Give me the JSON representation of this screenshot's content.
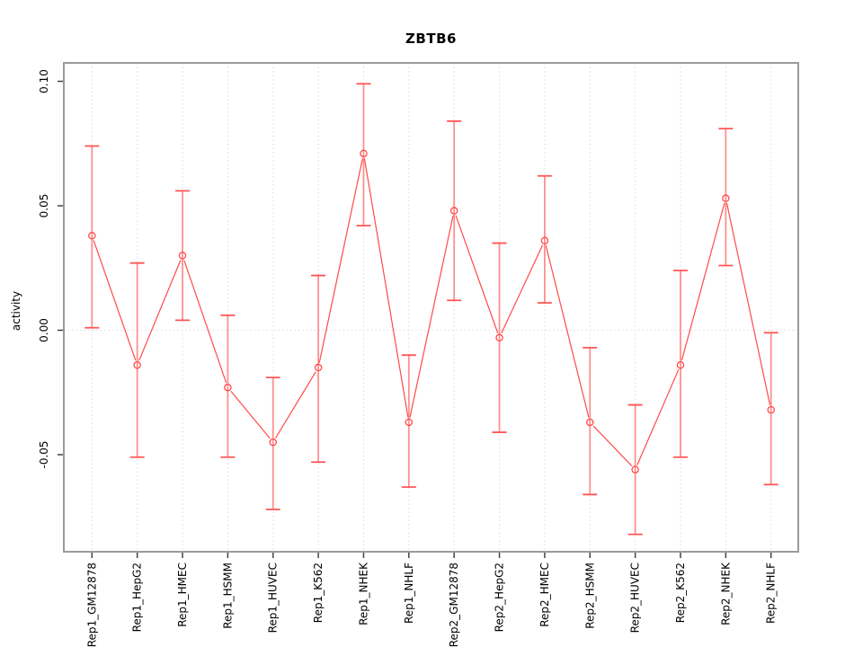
{
  "chart_data": {
    "type": "line",
    "title": "ZBTB6",
    "xlabel": "",
    "ylabel": "activity",
    "categories": [
      "Rep1_GM12878",
      "Rep1_HepG2",
      "Rep1_HMEC",
      "Rep1_HSMM",
      "Rep1_HUVEC",
      "Rep1_K562",
      "Rep1_NHEK",
      "Rep1_NHLF",
      "Rep2_GM12878",
      "Rep2_HepG2",
      "Rep2_HMEC",
      "Rep2_HSMM",
      "Rep2_HUVEC",
      "Rep2_K562",
      "Rep2_NHEK",
      "Rep2_NHLF"
    ],
    "series": [
      {
        "name": "activity",
        "values": [
          0.038,
          -0.014,
          0.03,
          -0.023,
          -0.045,
          -0.015,
          0.071,
          -0.037,
          0.048,
          -0.003,
          0.036,
          -0.037,
          -0.056,
          -0.014,
          0.053,
          -0.032
        ]
      }
    ],
    "error_low": [
      0.001,
      -0.051,
      0.004,
      -0.051,
      -0.072,
      -0.053,
      0.042,
      -0.063,
      0.012,
      -0.041,
      0.011,
      -0.066,
      -0.082,
      -0.051,
      0.026,
      -0.062
    ],
    "error_high": [
      0.074,
      0.027,
      0.056,
      0.006,
      -0.019,
      0.022,
      0.099,
      -0.01,
      0.084,
      0.035,
      0.062,
      -0.007,
      -0.03,
      0.024,
      0.081,
      -0.001
    ],
    "yticks": [
      0.1,
      0.05,
      0.0,
      -0.05
    ],
    "ytick_labels": [
      "0.10",
      "0.05",
      "0.00",
      "-0.05"
    ],
    "ylim": [
      -0.089,
      0.1074
    ],
    "legend": "none",
    "grid": {
      "vertical_dotted_per_category": true,
      "horizontal_dotted_at_zero": true
    },
    "colors": {
      "series_line": "#ff4a4a",
      "point_stroke": "#ff4a4a",
      "error_shaft": "#ff9090",
      "error_cap": "#ff5555",
      "gridline": "#dcdcdc",
      "frame": "#9a9a9a",
      "tick": "#444444",
      "text": "#000000",
      "background": "#ffffff"
    }
  }
}
